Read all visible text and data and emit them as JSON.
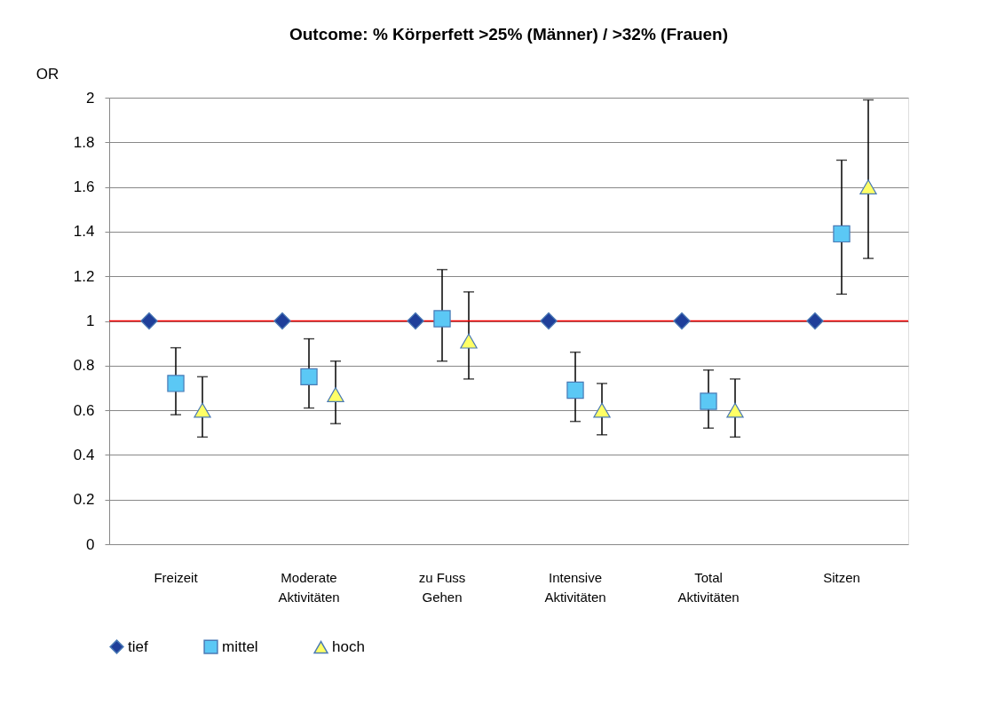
{
  "chart_data": {
    "type": "scatter",
    "title": "Outcome: % Körperfett >25% (Männer) / >32% (Frauen)",
    "ylabel": "OR",
    "categories": [
      "Freizeit",
      "Moderate\nAktivitäten",
      "zu Fuss\nGehen",
      "Intensive\nAktivitäten",
      "Total\nAktivitäten",
      "Sitzen"
    ],
    "series": [
      {
        "name": "tief",
        "color": "#1f3f9a",
        "marker": "diamond",
        "values": [
          1,
          1,
          1,
          1,
          1,
          1
        ]
      },
      {
        "name": "mittel",
        "color": "#5bc8f5",
        "marker": "square",
        "values": [
          0.72,
          0.75,
          1.01,
          0.69,
          0.64,
          1.39
        ],
        "errors": [
          [
            0.58,
            0.88
          ],
          [
            0.61,
            0.92
          ],
          [
            0.82,
            1.23
          ],
          [
            0.55,
            0.86
          ],
          [
            0.52,
            0.78
          ],
          [
            1.12,
            1.72
          ]
        ]
      },
      {
        "name": "hoch",
        "color": "#ffff66",
        "marker": "triangle",
        "values": [
          0.6,
          0.67,
          0.91,
          0.6,
          0.6,
          1.6
        ],
        "errors": [
          [
            0.48,
            0.75
          ],
          [
            0.54,
            0.82
          ],
          [
            0.74,
            1.13
          ],
          [
            0.49,
            0.72
          ],
          [
            0.48,
            0.74
          ],
          [
            1.28,
            1.99
          ]
        ]
      }
    ],
    "ylim": [
      0,
      2
    ],
    "yticks": [
      0,
      0.2,
      0.4,
      0.6,
      0.8,
      1,
      1.2,
      1.4,
      1.6,
      1.8,
      2
    ],
    "ref_lines": [
      {
        "axis": "y",
        "value": 1,
        "color": "#ff0000"
      }
    ],
    "grid": "y",
    "legend": "bottom"
  }
}
